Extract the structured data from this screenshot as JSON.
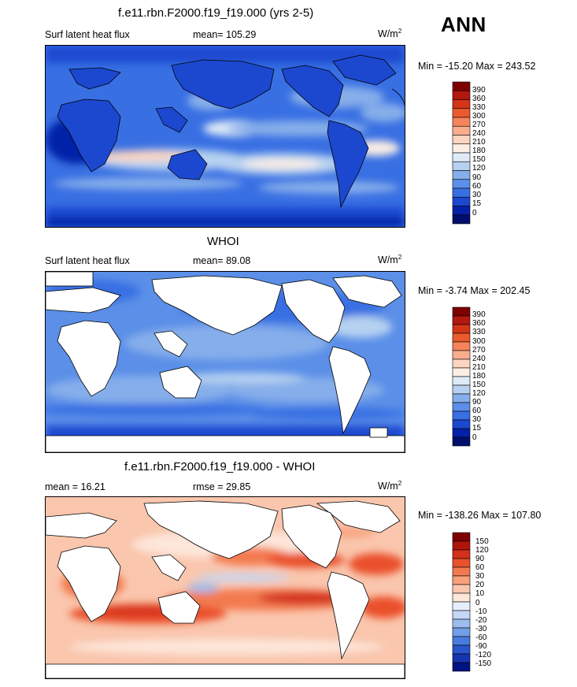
{
  "season": "ANN",
  "panels": [
    {
      "id": "model",
      "title": "f.e11.rbn.F2000.f19_f19.000 (yrs 2-5)",
      "variable": "Surf latent heat flux",
      "stat_label": "mean=",
      "stat_value": "105.29",
      "units": "W/m",
      "units_exp": "2",
      "minmax": "Min = -15.20 Max = 243.52",
      "colorbar_labels": [
        "390",
        "360",
        "330",
        "300",
        "270",
        "240",
        "210",
        "180",
        "150",
        "120",
        "90",
        "60",
        "30",
        "15",
        "0"
      ]
    },
    {
      "id": "obs",
      "title": "WHOI",
      "variable": "Surf latent heat flux",
      "stat_label": "mean=",
      "stat_value": "89.08",
      "units": "W/m",
      "units_exp": "2",
      "minmax": "Min =  -3.74 Max = 202.45",
      "colorbar_labels": [
        "390",
        "360",
        "330",
        "300",
        "270",
        "240",
        "210",
        "180",
        "150",
        "120",
        "90",
        "60",
        "30",
        "15",
        "0"
      ]
    },
    {
      "id": "diff",
      "title": "f.e11.rbn.F2000.f19_f19.000 - WHOI",
      "mean_label": "mean =",
      "mean_value": "16.21",
      "rmse_label": "rmse =",
      "rmse_value": "29.85",
      "units": "W/m",
      "units_exp": "2",
      "minmax": "Min = -138.26 Max = 107.80",
      "colorbar_labels": [
        "150",
        "120",
        "90",
        "60",
        "30",
        "20",
        "10",
        "0",
        "-10",
        "-20",
        "-30",
        "-60",
        "-90",
        "-120",
        "-150"
      ]
    }
  ],
  "colors": {
    "abs_scale": [
      "#7f0000",
      "#b2180e",
      "#d43518",
      "#ea5a2c",
      "#f5845a",
      "#f9ad8e",
      "#fcd5c1",
      "#fbeee5",
      "#deebf7",
      "#b6d1f0",
      "#86aeea",
      "#5b8fe8",
      "#386fe3",
      "#1c48d0",
      "#0520a8",
      "#000f6c"
    ],
    "diff_scale": [
      "#7f0000",
      "#b0150c",
      "#d4301a",
      "#ea502b",
      "#f37a50",
      "#f7a07c",
      "#fac6ad",
      "#fde6da",
      "#e6efff",
      "#c4d7f7",
      "#9dbdf0",
      "#729ee8",
      "#477cde",
      "#2a56cb",
      "#1534b0",
      "#001184"
    ]
  }
}
